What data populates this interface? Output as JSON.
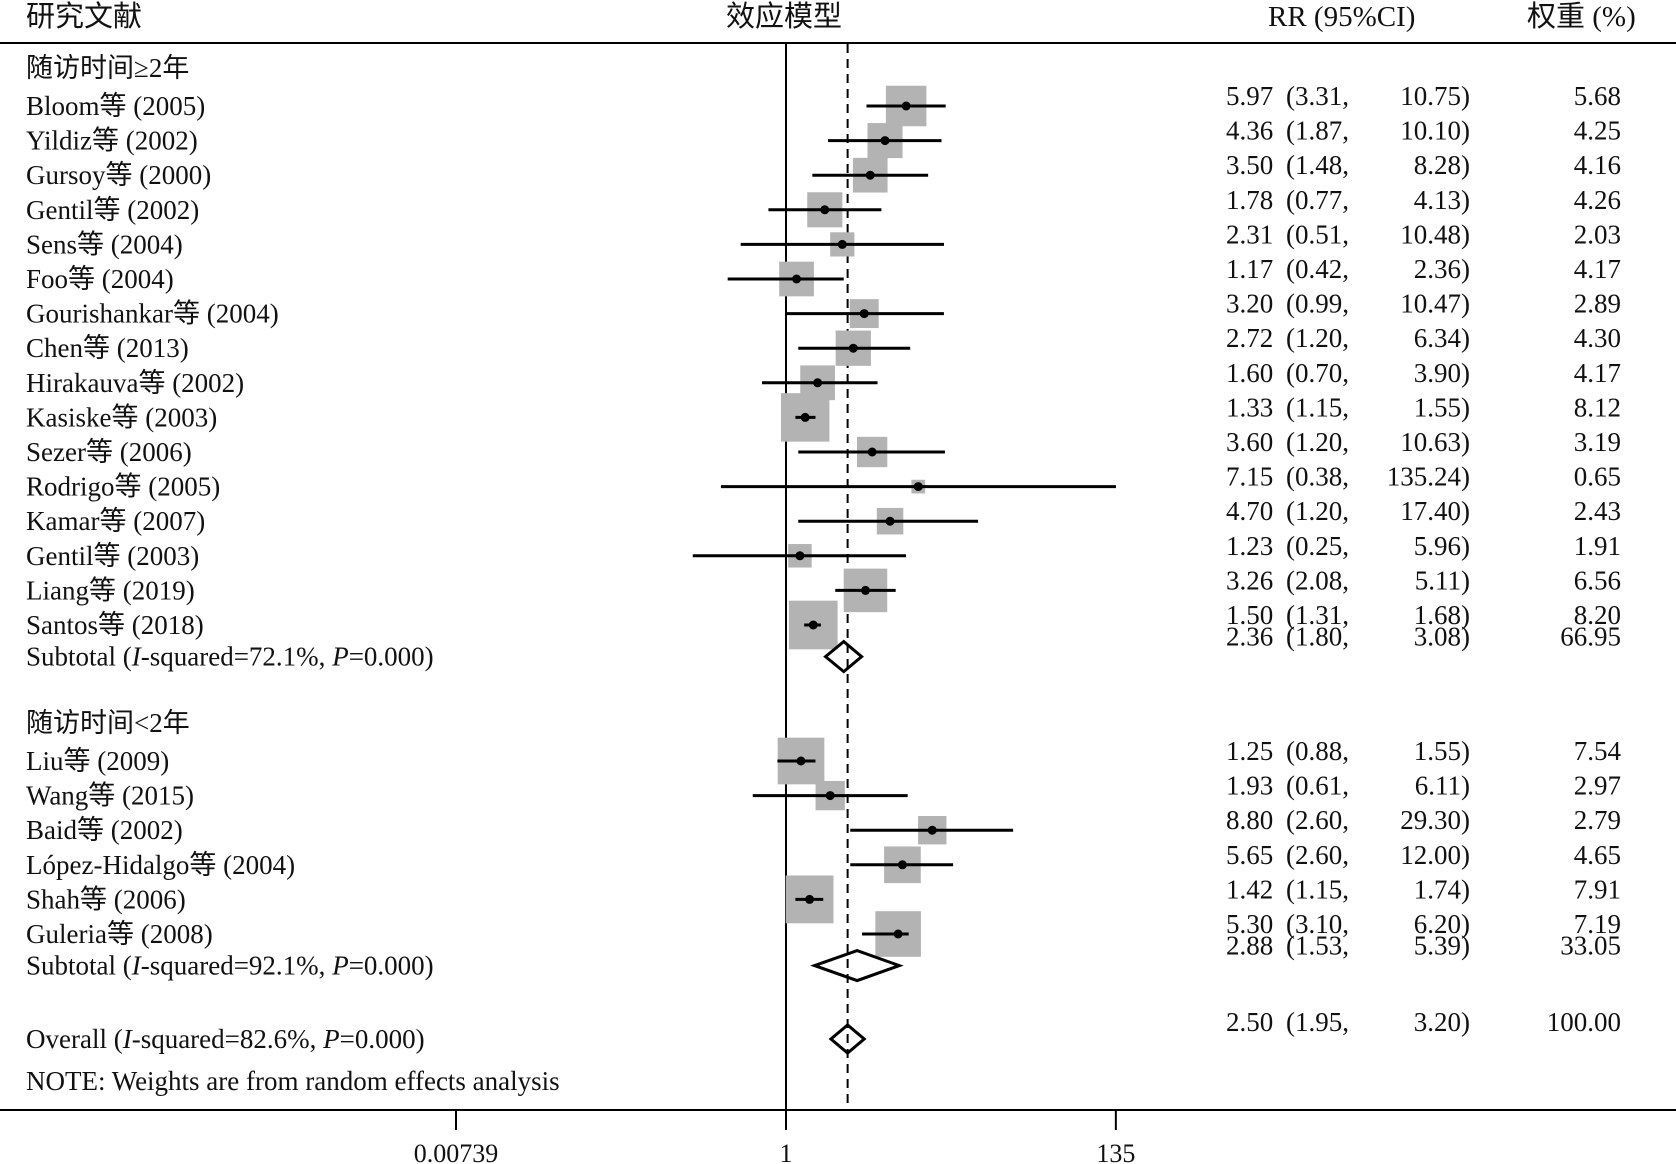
{
  "chart_data": {
    "type": "forest",
    "headers": {
      "study": "研究文献",
      "model": "效应模型",
      "ci": "RR (95%CI)",
      "weight": "权重 (%)"
    },
    "x_scale": "log",
    "x_ticks": [
      "0.00739",
      "1",
      "135"
    ],
    "x_range": [
      0.00739,
      135
    ],
    "null_line": 1,
    "overall_line": 2.5,
    "groups": [
      {
        "title": "随访时间≥2年",
        "studies": [
          {
            "label": "Bloom等 (2005)",
            "rr": 5.97,
            "lo": 3.31,
            "hi": 10.75,
            "rr_text": "5.97",
            "lo_text": "3.31",
            "hi_text": "10.75",
            "weight": 5.68,
            "weight_text": "5.68"
          },
          {
            "label": "Yildiz等 (2002)",
            "rr": 4.36,
            "lo": 1.87,
            "hi": 10.1,
            "rr_text": "4.36",
            "lo_text": "1.87",
            "hi_text": "10.10",
            "weight": 4.25,
            "weight_text": "4.25"
          },
          {
            "label": "Gursoy等 (2000)",
            "rr": 3.5,
            "lo": 1.48,
            "hi": 8.28,
            "rr_text": "3.50",
            "lo_text": "1.48",
            "hi_text": "8.28",
            "weight": 4.16,
            "weight_text": "4.16"
          },
          {
            "label": "Gentil等 (2002)",
            "rr": 1.78,
            "lo": 0.77,
            "hi": 4.13,
            "rr_text": "1.78",
            "lo_text": "0.77",
            "hi_text": "4.13",
            "weight": 4.26,
            "weight_text": "4.26"
          },
          {
            "label": "Sens等 (2004)",
            "rr": 2.31,
            "lo": 0.51,
            "hi": 10.48,
            "rr_text": "2.31",
            "lo_text": "0.51",
            "hi_text": "10.48",
            "weight": 2.03,
            "weight_text": "2.03"
          },
          {
            "label": "Foo等 (2004)",
            "rr": 1.17,
            "lo": 0.42,
            "hi": 2.36,
            "rr_text": "1.17",
            "lo_text": "0.42",
            "hi_text": "2.36",
            "weight": 4.17,
            "weight_text": "4.17"
          },
          {
            "label": "Gourishankar等 (2004)",
            "rr": 3.2,
            "lo": 0.99,
            "hi": 10.47,
            "rr_text": "3.20",
            "lo_text": "0.99",
            "hi_text": "10.47",
            "weight": 2.89,
            "weight_text": "2.89"
          },
          {
            "label": "Chen等 (2013)",
            "rr": 2.72,
            "lo": 1.2,
            "hi": 6.34,
            "rr_text": "2.72",
            "lo_text": "1.20",
            "hi_text": "6.34",
            "weight": 4.3,
            "weight_text": "4.30"
          },
          {
            "label": "Hirakauva等 (2002)",
            "rr": 1.6,
            "lo": 0.7,
            "hi": 3.9,
            "rr_text": "1.60",
            "lo_text": "0.70",
            "hi_text": "3.90",
            "weight": 4.17,
            "weight_text": "4.17"
          },
          {
            "label": "Kasiske等 (2003)",
            "rr": 1.33,
            "lo": 1.15,
            "hi": 1.55,
            "rr_text": "1.33",
            "lo_text": "1.15",
            "hi_text": "1.55",
            "weight": 8.12,
            "weight_text": "8.12"
          },
          {
            "label": "Sezer等 (2006)",
            "rr": 3.6,
            "lo": 1.2,
            "hi": 10.63,
            "rr_text": "3.60",
            "lo_text": "1.20",
            "hi_text": "10.63",
            "weight": 3.19,
            "weight_text": "3.19"
          },
          {
            "label": "Rodrigo等 (2005)",
            "rr": 7.15,
            "lo": 0.38,
            "hi": 135.24,
            "rr_text": "7.15",
            "lo_text": "0.38",
            "hi_text": "135.24",
            "weight": 0.65,
            "weight_text": "0.65"
          },
          {
            "label": "Kamar等 (2007)",
            "rr": 4.7,
            "lo": 1.2,
            "hi": 17.4,
            "rr_text": "4.70",
            "lo_text": "1.20",
            "hi_text": "17.40",
            "weight": 2.43,
            "weight_text": "2.43"
          },
          {
            "label": "Gentil等 (2003)",
            "rr": 1.23,
            "lo": 0.25,
            "hi": 5.96,
            "rr_text": "1.23",
            "lo_text": "0.25",
            "hi_text": "5.96",
            "weight": 1.91,
            "weight_text": "1.91"
          },
          {
            "label": "Liang等 (2019)",
            "rr": 3.26,
            "lo": 2.08,
            "hi": 5.11,
            "rr_text": "3.26",
            "lo_text": "2.08",
            "hi_text": "5.11",
            "weight": 6.56,
            "weight_text": "6.56"
          },
          {
            "label": "Santos等 (2018)",
            "rr": 1.5,
            "lo": 1.31,
            "hi": 1.68,
            "rr_text": "1.50",
            "lo_text": "1.31",
            "hi_text": "1.68",
            "weight": 8.2,
            "weight_text": "8.20"
          }
        ],
        "subtotal": {
          "prefix": "Subtotal (",
          "i_label": "I",
          "i_text": "-squared=72.1%, ",
          "p_label": "P",
          "p_text": "=0.000)",
          "rr": 2.36,
          "lo": 1.8,
          "hi": 3.08,
          "rr_text": "2.36",
          "lo_text": "1.80",
          "hi_text": "3.08",
          "weight_text": "66.95"
        }
      },
      {
        "title": "随访时间<2年",
        "studies": [
          {
            "label": "Liu等 (2009)",
            "rr": 1.25,
            "lo": 0.88,
            "hi": 1.55,
            "rr_text": "1.25",
            "lo_text": "0.88",
            "hi_text": "1.55",
            "weight": 7.54,
            "weight_text": "7.54"
          },
          {
            "label": "Wang等 (2015)",
            "rr": 1.93,
            "lo": 0.61,
            "hi": 6.11,
            "rr_text": "1.93",
            "lo_text": "0.61",
            "hi_text": "6.11",
            "weight": 2.97,
            "weight_text": "2.97"
          },
          {
            "label": "Baid等 (2002)",
            "rr": 8.8,
            "lo": 2.6,
            "hi": 29.3,
            "rr_text": "8.80",
            "lo_text": "2.60",
            "hi_text": "29.30",
            "weight": 2.79,
            "weight_text": "2.79"
          },
          {
            "label": "López-Hidalgo等 (2004)",
            "rr": 5.65,
            "lo": 2.6,
            "hi": 12.0,
            "rr_text": "5.65",
            "lo_text": "2.60",
            "hi_text": "12.00",
            "weight": 4.65,
            "weight_text": "4.65"
          },
          {
            "label": "Shah等 (2006)",
            "rr": 1.42,
            "lo": 1.15,
            "hi": 1.74,
            "rr_text": "1.42",
            "lo_text": "1.15",
            "hi_text": "1.74",
            "weight": 7.91,
            "weight_text": "7.91"
          },
          {
            "label": "Guleria等 (2008)",
            "rr": 5.3,
            "lo": 3.1,
            "hi": 6.2,
            "rr_text": "5.30",
            "lo_text": "3.10",
            "hi_text": "6.20",
            "weight": 7.19,
            "weight_text": "7.19"
          }
        ],
        "subtotal": {
          "prefix": "Subtotal (",
          "i_label": "I",
          "i_text": "-squared=92.1%, ",
          "p_label": "P",
          "p_text": "=0.000)",
          "rr": 2.88,
          "lo": 1.53,
          "hi": 5.39,
          "rr_text": "2.88",
          "lo_text": "1.53",
          "hi_text": "5.39",
          "weight_text": "33.05"
        }
      }
    ],
    "overall": {
      "prefix": "Overall (",
      "i_label": "I",
      "i_text": "-squared=82.6%, ",
      "p_label": "P",
      "p_text": "=0.000)",
      "rr": 2.5,
      "lo": 1.95,
      "hi": 3.2,
      "rr_text": "2.50",
      "lo_text": "1.95",
      "hi_text": "3.20",
      "weight_text": "100.00"
    },
    "note": "NOTE: Weights are from random effects analysis",
    "colors": {
      "box": "#b3b3b3",
      "line": "#000000"
    }
  }
}
